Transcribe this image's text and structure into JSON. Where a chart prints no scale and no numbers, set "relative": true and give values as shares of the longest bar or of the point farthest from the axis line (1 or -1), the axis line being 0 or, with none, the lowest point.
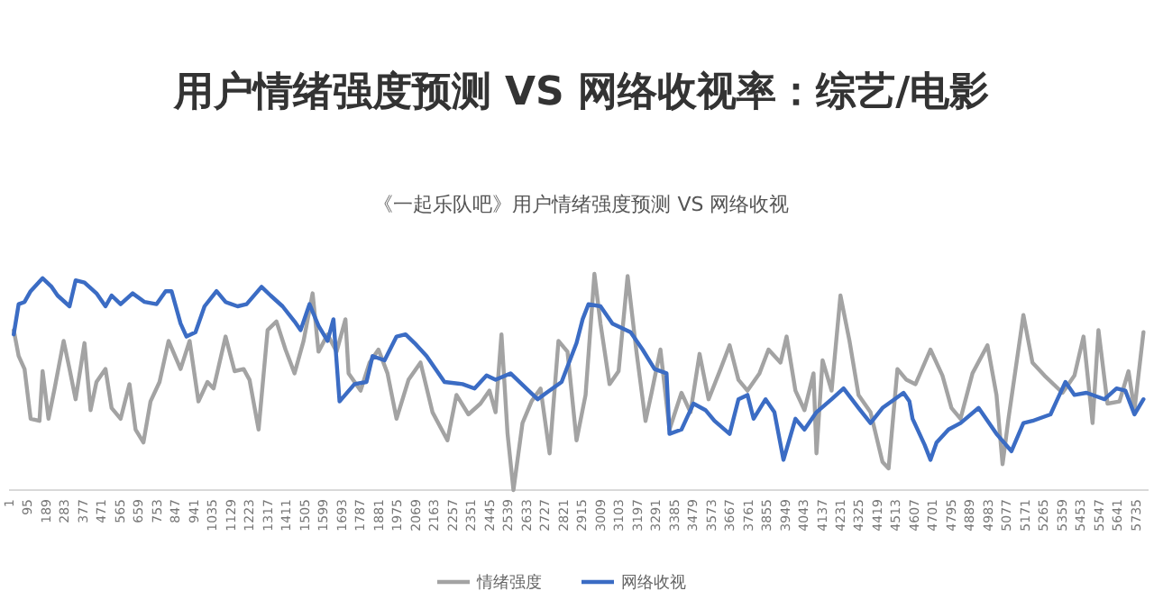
{
  "chart_data": {
    "type": "line",
    "title": "用户情绪强度预测 VS 网络收视率：综艺/电影",
    "subtitle": "《一起乐队吧》用户情绪强度预测 VS 网络收视",
    "relative": true,
    "legend": "bottom",
    "marker": "none",
    "line_style": "solid",
    "xlim": [
      1,
      5800
    ],
    "xticks": [
      1,
      95,
      189,
      283,
      377,
      471,
      565,
      659,
      753,
      847,
      941,
      1035,
      1129,
      1223,
      1317,
      1411,
      1505,
      1599,
      1693,
      1787,
      1881,
      1975,
      2069,
      2163,
      2257,
      2351,
      2445,
      2539,
      2633,
      2727,
      2821,
      2915,
      3009,
      3103,
      3197,
      3291,
      3385,
      3479,
      3573,
      3667,
      3761,
      3855,
      3949,
      4043,
      4137,
      4231,
      4325,
      4419,
      4513,
      4607,
      4701,
      4795,
      4889,
      4983,
      5077,
      5171,
      5265,
      5359,
      5453,
      5547,
      5641,
      5735
    ],
    "series": [
      {
        "name": "情绪强度",
        "color": "#a3a3a3",
        "x": [
          25,
          50,
          80,
          111,
          156,
          172,
          202,
          233,
          279,
          309,
          340,
          385,
          416,
          446,
          492,
          523,
          569,
          614,
          645,
          685,
          721,
          767,
          813,
          874,
          920,
          965,
          1011,
          1042,
          1103,
          1149,
          1195,
          1225,
          1271,
          1317,
          1362,
          1408,
          1454,
          1500,
          1546,
          1576,
          1622,
          1668,
          1713,
          1729,
          1790,
          1836,
          1881,
          1927,
          1973,
          2034,
          2095,
          2156,
          2232,
          2278,
          2339,
          2400,
          2446,
          2477,
          2507,
          2538,
          2568,
          2614,
          2660,
          2706,
          2752,
          2797,
          2843,
          2889,
          2935,
          2980,
          3011,
          3057,
          3103,
          3149,
          3194,
          3240,
          3271,
          3316,
          3362,
          3423,
          3469,
          3515,
          3561,
          3622,
          3668,
          3713,
          3759,
          3820,
          3866,
          3927,
          3958,
          4003,
          4049,
          4095,
          4110,
          4141,
          4187,
          4232,
          4278,
          4324,
          4385,
          4446,
          4477,
          4522,
          4568,
          4614,
          4690,
          4751,
          4797,
          4843,
          4904,
          4980,
          5026,
          5057,
          5087,
          5163,
          5209,
          5270,
          5362,
          5423,
          5469,
          5515,
          5545,
          5591,
          5652,
          5698,
          5728,
          5774
        ],
        "values": [
          0.74,
          0.62,
          0.56,
          0.33,
          0.32,
          0.55,
          0.33,
          0.47,
          0.69,
          0.56,
          0.42,
          0.68,
          0.37,
          0.5,
          0.56,
          0.38,
          0.33,
          0.49,
          0.28,
          0.22,
          0.41,
          0.5,
          0.69,
          0.56,
          0.69,
          0.41,
          0.5,
          0.47,
          0.71,
          0.55,
          0.56,
          0.51,
          0.28,
          0.74,
          0.78,
          0.65,
          0.54,
          0.69,
          0.91,
          0.64,
          0.72,
          0.64,
          0.79,
          0.54,
          0.46,
          0.59,
          0.65,
          0.54,
          0.33,
          0.51,
          0.59,
          0.36,
          0.23,
          0.44,
          0.35,
          0.4,
          0.46,
          0.36,
          0.72,
          0.26,
          0,
          0.31,
          0.41,
          0.47,
          0.17,
          0.69,
          0.64,
          0.23,
          0.44,
          1,
          0.77,
          0.49,
          0.55,
          0.99,
          0.64,
          0.32,
          0.45,
          0.65,
          0.28,
          0.45,
          0.36,
          0.63,
          0.42,
          0.56,
          0.67,
          0.51,
          0.46,
          0.54,
          0.65,
          0.59,
          0.71,
          0.46,
          0.37,
          0.54,
          0.17,
          0.6,
          0.46,
          0.9,
          0.69,
          0.44,
          0.36,
          0.13,
          0.1,
          0.56,
          0.51,
          0.49,
          0.65,
          0.53,
          0.38,
          0.33,
          0.54,
          0.67,
          0.44,
          0.12,
          0.33,
          0.81,
          0.59,
          0.53,
          0.45,
          0.53,
          0.71,
          0.31,
          0.74,
          0.4,
          0.41,
          0.55,
          0.37,
          0.73
        ]
      },
      {
        "name": "网络收视",
        "color": "#3b6cc4",
        "x": [
          25,
          50,
          80,
          111,
          172,
          218,
          248,
          309,
          340,
          385,
          446,
          492,
          523,
          569,
          630,
          691,
          752,
          798,
          828,
          874,
          904,
          950,
          996,
          1057,
          1103,
          1164,
          1210,
          1286,
          1332,
          1393,
          1454,
          1485,
          1530,
          1576,
          1622,
          1652,
          1683,
          1759,
          1820,
          1851,
          1912,
          1973,
          2019,
          2065,
          2126,
          2217,
          2309,
          2370,
          2431,
          2477,
          2553,
          2645,
          2691,
          2736,
          2813,
          2889,
          2920,
          2950,
          3011,
          3072,
          3164,
          3225,
          3286,
          3347,
          3362,
          3423,
          3484,
          3545,
          3591,
          3668,
          3713,
          3759,
          3790,
          3851,
          3896,
          3942,
          4003,
          4049,
          4110,
          4187,
          4248,
          4324,
          4385,
          4446,
          4507,
          4553,
          4583,
          4599,
          4660,
          4690,
          4721,
          4782,
          4843,
          4935,
          5026,
          5102,
          5163,
          5209,
          5301,
          5331,
          5377,
          5423,
          5484,
          5576,
          5637,
          5682,
          5728,
          5774
        ],
        "values": [
          0.72,
          0.86,
          0.87,
          0.92,
          0.98,
          0.94,
          0.9,
          0.85,
          0.97,
          0.96,
          0.91,
          0.85,
          0.9,
          0.86,
          0.91,
          0.87,
          0.86,
          0.92,
          0.92,
          0.77,
          0.71,
          0.73,
          0.85,
          0.92,
          0.87,
          0.85,
          0.86,
          0.94,
          0.9,
          0.85,
          0.78,
          0.74,
          0.86,
          0.76,
          0.69,
          0.79,
          0.41,
          0.49,
          0.5,
          0.62,
          0.6,
          0.71,
          0.72,
          0.68,
          0.62,
          0.5,
          0.49,
          0.47,
          0.53,
          0.51,
          0.54,
          0.46,
          0.42,
          0.45,
          0.5,
          0.68,
          0.79,
          0.86,
          0.85,
          0.77,
          0.73,
          0.65,
          0.56,
          0.54,
          0.26,
          0.28,
          0.4,
          0.37,
          0.32,
          0.26,
          0.42,
          0.44,
          0.33,
          0.42,
          0.36,
          0.14,
          0.33,
          0.28,
          0.36,
          0.42,
          0.47,
          0.38,
          0.31,
          0.38,
          0.42,
          0.45,
          0.41,
          0.33,
          0.21,
          0.14,
          0.22,
          0.28,
          0.31,
          0.38,
          0.26,
          0.18,
          0.31,
          0.32,
          0.35,
          0.41,
          0.5,
          0.44,
          0.45,
          0.42,
          0.47,
          0.46,
          0.35,
          0.42
        ]
      }
    ]
  }
}
